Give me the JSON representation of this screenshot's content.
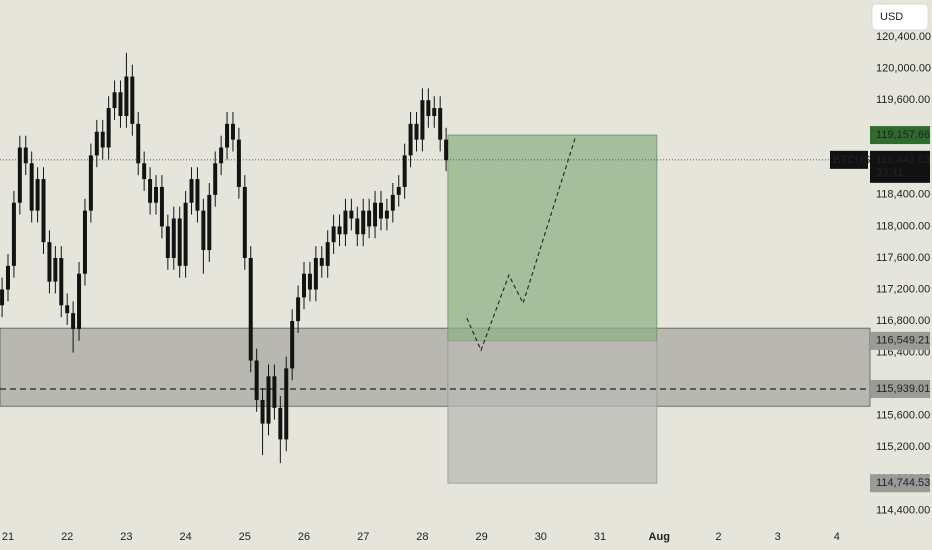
{
  "chart_data": {
    "type": "candlestick",
    "currency": "USD",
    "color": "#131313",
    "x": [
      20.9,
      21.0,
      21.1,
      21.2,
      21.3,
      21.4,
      21.5,
      21.6,
      21.7,
      21.8,
      21.9,
      22.0,
      22.1,
      22.2,
      22.3,
      22.4,
      22.5,
      22.6,
      22.7,
      22.8,
      22.9,
      23.0,
      23.1,
      23.2,
      23.3,
      23.4,
      23.5,
      23.6,
      23.7,
      23.8,
      23.9,
      24.0,
      24.1,
      24.2,
      24.3,
      24.4,
      24.5,
      24.6,
      24.7,
      24.8,
      24.9,
      25.0,
      25.1,
      25.2,
      25.3,
      25.4,
      25.5,
      25.6,
      25.7,
      25.8,
      25.9,
      26.0,
      26.1,
      26.2,
      26.3,
      26.4,
      26.5,
      26.6,
      26.7,
      26.8,
      26.9,
      27.0,
      27.1,
      27.2,
      27.3,
      27.4,
      27.5,
      27.6,
      27.7,
      27.8,
      27.9,
      28.0,
      28.1,
      28.2,
      28.3,
      28.4
    ],
    "open": [
      117000,
      117200,
      117500,
      118300,
      119000,
      118800,
      118200,
      118600,
      117800,
      117300,
      117600,
      117000,
      116900,
      116700,
      117400,
      118200,
      118900,
      119200,
      119000,
      119500,
      119700,
      119400,
      119900,
      119300,
      118800,
      118600,
      118300,
      118500,
      118000,
      117600,
      118100,
      117500,
      118300,
      118600,
      118200,
      117700,
      118400,
      118800,
      119000,
      119300,
      119100,
      118500,
      117600,
      116300,
      115800,
      115500,
      116100,
      115700,
      115300,
      116200,
      116800,
      117100,
      117400,
      117200,
      117600,
      117500,
      117800,
      118000,
      117900,
      118200,
      118100,
      117900,
      118200,
      118000,
      118300,
      118100,
      118200,
      118400,
      118500,
      118900,
      119300,
      119100,
      119600,
      119400,
      119500,
      119100
    ],
    "high": [
      117350,
      117650,
      118450,
      119150,
      119150,
      118950,
      118750,
      118750,
      117950,
      117750,
      117750,
      117150,
      117050,
      117550,
      118350,
      119050,
      119350,
      119350,
      119650,
      119850,
      119850,
      120200,
      120050,
      119450,
      118950,
      118750,
      118650,
      118650,
      118150,
      118250,
      118250,
      118450,
      118750,
      118750,
      118350,
      118550,
      118950,
      119150,
      119450,
      119450,
      119250,
      118650,
      117750,
      116450,
      115950,
      116250,
      116250,
      115850,
      116350,
      116950,
      117250,
      117550,
      117550,
      117750,
      117750,
      117950,
      118150,
      118150,
      118350,
      118350,
      118250,
      118350,
      118350,
      118450,
      118450,
      118350,
      118550,
      118650,
      119050,
      119450,
      119450,
      119750,
      119750,
      119650,
      119650,
      119250
    ],
    "low": [
      116850,
      117050,
      117350,
      118150,
      118650,
      118050,
      118050,
      117650,
      117150,
      117150,
      116850,
      116750,
      116400,
      116550,
      117250,
      118050,
      118750,
      118850,
      118850,
      119350,
      119250,
      119250,
      119150,
      118650,
      118450,
      118150,
      118150,
      117850,
      117450,
      117450,
      117350,
      117350,
      118150,
      118050,
      117400,
      117550,
      118250,
      118650,
      118850,
      118950,
      118350,
      117450,
      116150,
      115650,
      115100,
      115350,
      115550,
      115000,
      115150,
      116050,
      116650,
      116950,
      117050,
      117050,
      117350,
      117350,
      117650,
      117750,
      117750,
      117950,
      117750,
      117750,
      117850,
      117850,
      117950,
      117950,
      118050,
      118250,
      118350,
      118750,
      118950,
      118950,
      119250,
      119250,
      118950,
      118700
    ],
    "close": [
      117200,
      117500,
      118300,
      119000,
      118800,
      118200,
      118600,
      117800,
      117300,
      117600,
      117000,
      116900,
      116700,
      117400,
      118200,
      118900,
      119200,
      119000,
      119500,
      119700,
      119400,
      119900,
      119300,
      118800,
      118600,
      118300,
      118500,
      118000,
      117600,
      118100,
      117500,
      118300,
      118600,
      118200,
      117700,
      118400,
      118800,
      119000,
      119300,
      119100,
      118500,
      117600,
      116300,
      115800,
      115500,
      116100,
      115700,
      115300,
      116200,
      116800,
      117100,
      117400,
      117200,
      117600,
      117500,
      117800,
      118000,
      117900,
      118200,
      118100,
      117900,
      118200,
      118000,
      118300,
      118100,
      118200,
      118400,
      118500,
      118900,
      119300,
      119100,
      119600,
      119400,
      119500,
      119100,
      118840
    ],
    "xlim": [
      20.865,
      35.56
    ],
    "xticks": [
      21,
      22,
      23,
      24,
      25,
      26,
      27,
      28,
      29,
      30,
      31,
      {
        "value": 32,
        "label": "Aug"
      },
      {
        "value": 33,
        "label": "2"
      },
      {
        "value": 34,
        "label": "3"
      },
      {
        "value": 35,
        "label": "4"
      }
    ],
    "ylim": [
      114240,
      120870
    ],
    "yticks": [
      {
        "value": 120400,
        "label": "120,400.00"
      },
      {
        "value": 120000,
        "label": "120,000.00"
      },
      {
        "value": 119600,
        "label": "119,600.00"
      },
      {
        "value": 118400,
        "label": "118,400.00"
      },
      {
        "value": 118000,
        "label": "118,000.00"
      },
      {
        "value": 117600,
        "label": "117,600.00"
      },
      {
        "value": 117200,
        "label": "117,200.00"
      },
      {
        "value": 116800,
        "label": "116,800.00"
      },
      {
        "value": 116400,
        "label": "116,400.00"
      },
      {
        "value": 115600,
        "label": "115,600.00"
      },
      {
        "value": 115200,
        "label": "115,200.00"
      },
      {
        "value": 114800,
        "label": "114,800.00"
      },
      {
        "value": 114400,
        "label": "114,400.00"
      }
    ],
    "zone": {
      "top": 116710,
      "bottom": 115720,
      "color": "#8a8a86"
    },
    "position": {
      "x": [
        28.43,
        31.96
      ],
      "target": {
        "value": 119157.66,
        "label": "119,157.66"
      },
      "entry": {
        "value": 116549.21,
        "label": "116,549.21"
      },
      "stop": {
        "value": 114744.53,
        "label": "114,744.53"
      },
      "target_color": "#8fb187",
      "stop_color": "#b9b9b5"
    },
    "level": {
      "value": 115939.01,
      "label": "115,939.01"
    },
    "current": {
      "symbol": "BTCUSD",
      "value": 118843.63,
      "label": "118,843.63",
      "countdown": "33:41"
    },
    "projection": {
      "x": [
        28.75,
        28.99,
        29.46,
        29.7,
        30.59
      ],
      "y": [
        116837,
        116431,
        117382,
        117027,
        119145
      ]
    }
  }
}
